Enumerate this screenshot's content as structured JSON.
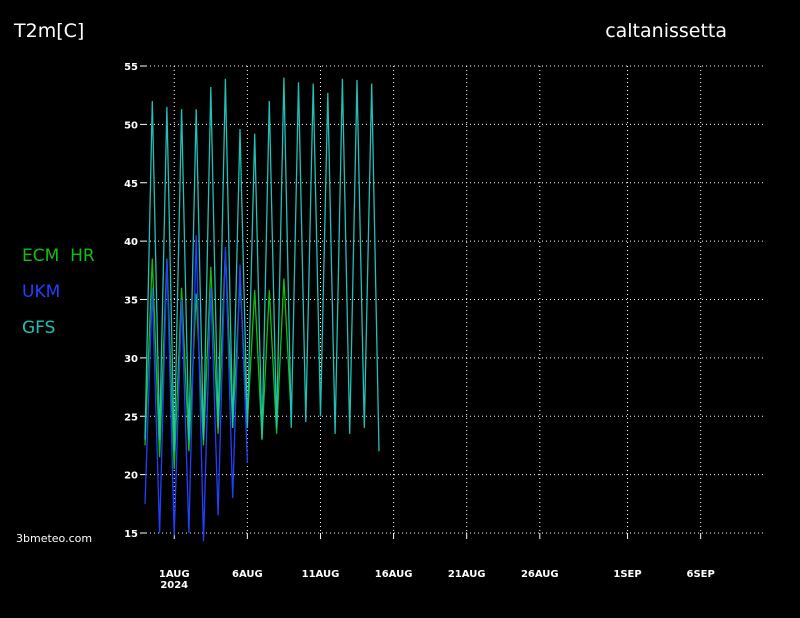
{
  "chart_data": {
    "type": "line",
    "title": "T2m[C]",
    "location": "caltanissetta",
    "source": "3bmeteo.com",
    "x_year_label": "2024",
    "xlim": [
      -1,
      41.4
    ],
    "ylim": [
      15,
      55
    ],
    "yticks": [
      15,
      20,
      25,
      30,
      35,
      40,
      45,
      50,
      55
    ],
    "xticks": [
      {
        "value": 1,
        "label": "1AUG"
      },
      {
        "value": 6,
        "label": "6AUG"
      },
      {
        "value": 11,
        "label": "11AUG"
      },
      {
        "value": 16,
        "label": "16AUG"
      },
      {
        "value": 21,
        "label": "21AUG"
      },
      {
        "value": 26,
        "label": "26AUG"
      },
      {
        "value": 32,
        "label": "1SEP"
      },
      {
        "value": 37,
        "label": "6SEP"
      }
    ],
    "grid": true,
    "series": [
      {
        "name": "ECM  HR",
        "color": "#10c010",
        "x": [
          -1,
          -0.5,
          0,
          0.5,
          1,
          1.5,
          2,
          2.5,
          3,
          3.5,
          4,
          4.5,
          5,
          5.5,
          6,
          6.5,
          7,
          7.5,
          8,
          8.5,
          9
        ],
        "values": [
          22.5,
          38.5,
          21.5,
          38.5,
          20.5,
          36,
          22,
          35.5,
          22.5,
          37.8,
          23.5,
          39.2,
          24,
          36.5,
          24.5,
          35.8,
          23,
          35.8,
          23.5,
          36.8,
          25
        ]
      },
      {
        "name": "UKM",
        "color": "#2040ff",
        "x": [
          -1,
          -0.5,
          0,
          0.5,
          1,
          1.5,
          2,
          2.5,
          3,
          3.5,
          4,
          4.5,
          5,
          5.5,
          6
        ],
        "values": [
          17.5,
          36,
          15,
          38.5,
          14.8,
          35,
          15,
          40.5,
          14.3,
          36,
          16.5,
          39.5,
          18,
          38,
          21
        ]
      },
      {
        "name": "GFS",
        "color": "#20c0b8",
        "x": [
          -1,
          -0.5,
          0,
          0.5,
          1,
          1.5,
          2,
          2.5,
          3,
          3.5,
          4,
          4.5,
          5,
          5.5,
          6,
          6.5,
          7,
          7.5,
          8,
          8.5,
          9,
          9.5,
          10,
          10.5,
          11,
          11.5,
          12,
          12.5,
          13,
          13.5,
          14,
          14.5,
          15
        ],
        "values": [
          23,
          52,
          23,
          51.5,
          22,
          51.3,
          23,
          51.3,
          23,
          53.2,
          24,
          53.9,
          24,
          49.6,
          24,
          49.2,
          23,
          52,
          24,
          54,
          24,
          53.6,
          24.5,
          53.5,
          25,
          52.7,
          23.5,
          53.9,
          23.5,
          53.8,
          24,
          53.5,
          22
        ]
      }
    ]
  }
}
